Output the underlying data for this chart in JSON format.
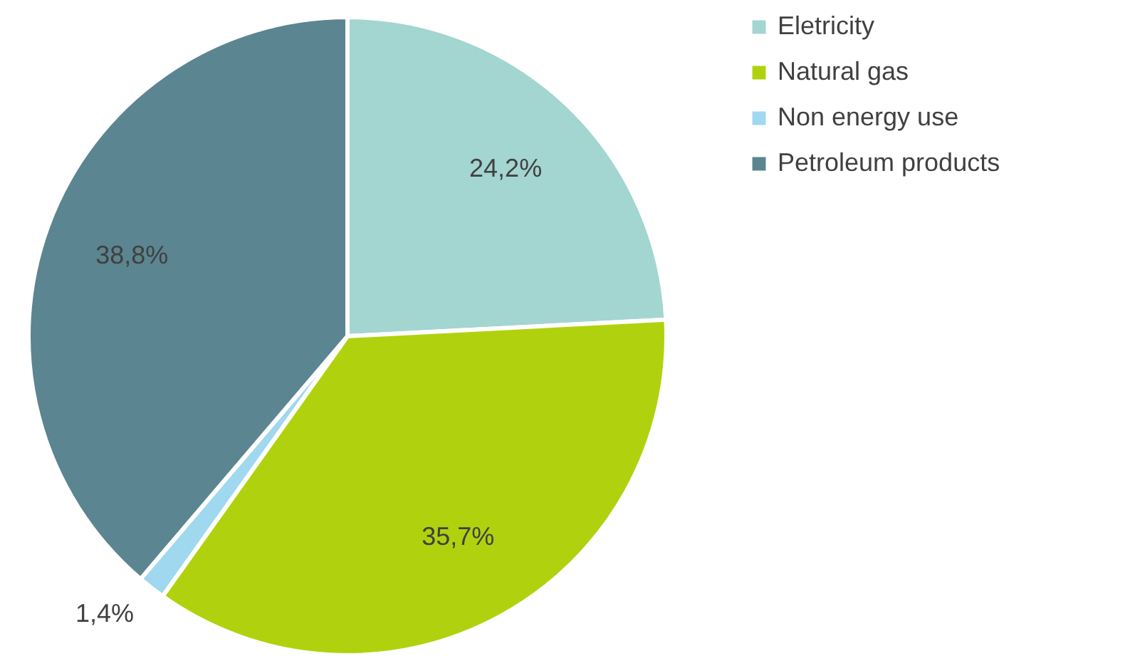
{
  "chart_data": {
    "type": "pie",
    "categories": [
      "Eletricity",
      "Natural gas",
      "Non energy use",
      "Petroleum products"
    ],
    "values": [
      24.2,
      35.7,
      1.4,
      38.8
    ],
    "value_labels": [
      "24,2%",
      "35,7%",
      "1,4%",
      "38,8%"
    ],
    "colors": [
      "#a3d5d1",
      "#b0d20e",
      "#9fd8ef",
      "#5b8591"
    ],
    "legend": "right"
  }
}
